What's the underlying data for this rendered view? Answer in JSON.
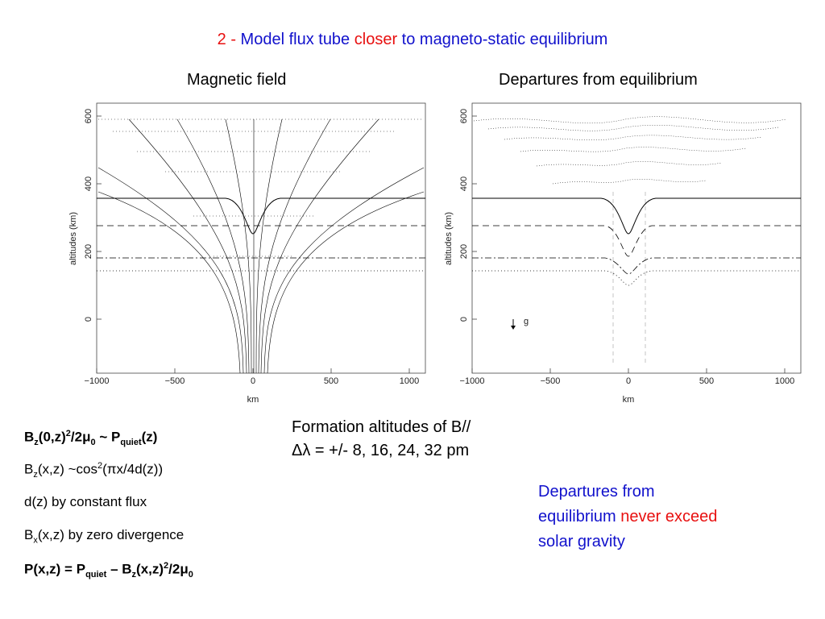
{
  "title": {
    "num": "2 -",
    "part1": "Model flux tube",
    "part2": "closer",
    "part3": "to magneto-static equilibrium"
  },
  "left_panel": {
    "heading": "Magnetic field",
    "ylabel": "altitudes (km)",
    "xlabel": "km",
    "xticks": [
      "−1000",
      "−500",
      "0",
      "500",
      "1000"
    ],
    "yticks": [
      "0",
      "200",
      "400",
      "600"
    ]
  },
  "right_panel": {
    "heading": "Departures from equilibrium",
    "ylabel": "altitudes (km)",
    "xlabel": "km",
    "xticks": [
      "−1000",
      "−500",
      "0",
      "500",
      "1000"
    ],
    "yticks": [
      "0",
      "200",
      "400",
      "600"
    ],
    "gravity_label": "g"
  },
  "equations": {
    "eq1": {
      "a": "B",
      "a_sub": "z",
      "b": "(0,z)",
      "b_sup": "2",
      "c": "/2μ",
      "c_sub": "0",
      "d": " ~ P",
      "d_sub": "quiet",
      "e": "(z)"
    },
    "eq2": {
      "a": "B",
      "a_sub": "z",
      "b": "(x,z) ~cos",
      "b_sup": "2",
      "c": "(πx/4d(z))"
    },
    "eq3": {
      "text": "d(z) by constant flux"
    },
    "eq4": {
      "a": "B",
      "a_sub": "x",
      "b": "(x,z) by zero divergence"
    },
    "eq5": {
      "a": "P(x,z) = P",
      "a_sub": "quiet",
      "b": " – B",
      "b_sub": "z",
      "c": "(x,z)",
      "c_sup": "2",
      "d": "/2μ",
      "d_sub": "0"
    }
  },
  "formation": {
    "line1": "Formation altitudes of B//",
    "line2": "Δλ = +/- 8, 16, 24, 32 pm"
  },
  "departures_note": {
    "line1": "Departures from",
    "line2a": "equilibrium",
    "line2b": "never exceed",
    "line3": "solar gravity"
  },
  "colors": {
    "blue": "#1111cc",
    "red": "#e81010"
  }
}
